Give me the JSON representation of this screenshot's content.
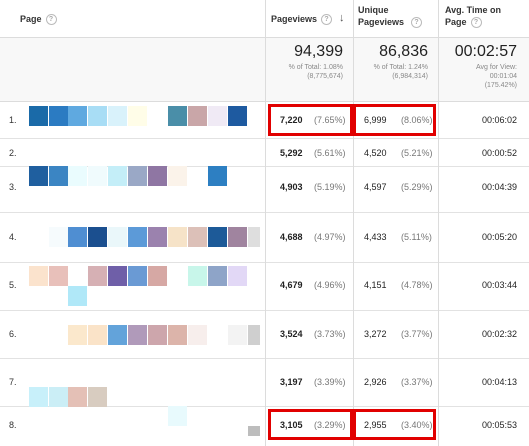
{
  "header": {
    "page": "Page",
    "pageviews": "Pageviews",
    "unique_pageviews": "Unique\nPageviews",
    "avg_time": "Avg. Time on\nPage",
    "help_glyph": "?",
    "sort_glyph": "↓"
  },
  "summary": {
    "pageviews": {
      "value": "94,399",
      "line1": "% of Total: 1.08%",
      "line2": "(8,775,674)"
    },
    "unique": {
      "value": "86,836",
      "line1": "% of Total: 1.24%",
      "line2": "(6,984,314)"
    },
    "time": {
      "value": "00:02:57",
      "line1": "Avg for View:",
      "line2": "00:01:04",
      "line3": "(175.42%)"
    }
  },
  "rows": [
    {
      "num": "1.",
      "pv": "7,220",
      "pv_pct": "(7.65%)",
      "upv": "6,999",
      "upv_pct": "(8.06%)",
      "time": "00:06:02"
    },
    {
      "num": "2.",
      "pv": "5,292",
      "pv_pct": "(5.61%)",
      "upv": "4,520",
      "upv_pct": "(5.21%)",
      "time": "00:00:52"
    },
    {
      "num": "3.",
      "pv": "4,903",
      "pv_pct": "(5.19%)",
      "upv": "4,597",
      "upv_pct": "(5.29%)",
      "time": "00:04:39"
    },
    {
      "num": "4.",
      "pv": "4,688",
      "pv_pct": "(4.97%)",
      "upv": "4,433",
      "upv_pct": "(5.11%)",
      "time": "00:05:20"
    },
    {
      "num": "5.",
      "pv": "4,679",
      "pv_pct": "(4.96%)",
      "upv": "4,151",
      "upv_pct": "(4.78%)",
      "time": "00:03:44"
    },
    {
      "num": "6.",
      "pv": "3,524",
      "pv_pct": "(3.73%)",
      "upv": "3,272",
      "upv_pct": "(3.77%)",
      "time": "00:02:32"
    },
    {
      "num": "7.",
      "pv": "3,197",
      "pv_pct": "(3.39%)",
      "upv": "2,926",
      "upv_pct": "(3.37%)",
      "time": "00:04:13"
    },
    {
      "num": "8.",
      "pv": "3,105",
      "pv_pct": "(3.29%)",
      "upv": "2,955",
      "upv_pct": "(3.40%)",
      "time": "00:05:53"
    }
  ],
  "colors": {
    "highlight": "#e10000",
    "grid": "#dcdcdc",
    "summary_bg": "#f8f8f8"
  }
}
